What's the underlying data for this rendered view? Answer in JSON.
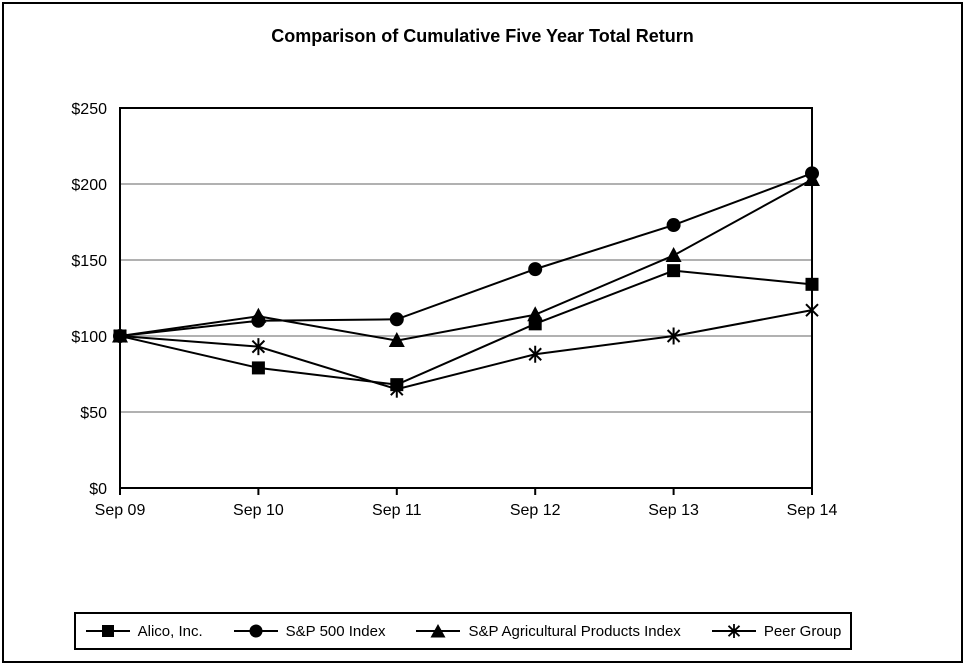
{
  "chart_data": {
    "type": "line",
    "title": "Comparison of Cumulative Five Year Total Return",
    "categories": [
      "Sep 09",
      "Sep 10",
      "Sep 11",
      "Sep 12",
      "Sep 13",
      "Sep 14"
    ],
    "series": [
      {
        "name": "Alico, Inc.",
        "marker": "square",
        "values": [
          100,
          79,
          68,
          108,
          143,
          134
        ]
      },
      {
        "name": "S&P 500 Index",
        "marker": "circle",
        "values": [
          100,
          110,
          111,
          144,
          173,
          207
        ]
      },
      {
        "name": "S&P Agricultural Products Index",
        "marker": "triangle",
        "values": [
          100,
          113,
          97,
          114,
          153,
          203
        ]
      },
      {
        "name": "Peer Group",
        "marker": "asterisk",
        "values": [
          100,
          93,
          65,
          88,
          100,
          117
        ]
      }
    ],
    "xlabel": "",
    "ylabel": "",
    "ylim": [
      0,
      250
    ],
    "ytick_values": [
      0,
      50,
      100,
      150,
      200,
      250
    ],
    "ytick_labels": [
      "$0",
      "$50",
      "$100",
      "$150",
      "$200",
      "$250"
    ],
    "grid": true,
    "legend_position": "bottom",
    "colors": {
      "series": "#000000",
      "gridline": "#a6a6a6",
      "frame": "#000000",
      "text": "#000000",
      "background": "#ffffff"
    }
  }
}
